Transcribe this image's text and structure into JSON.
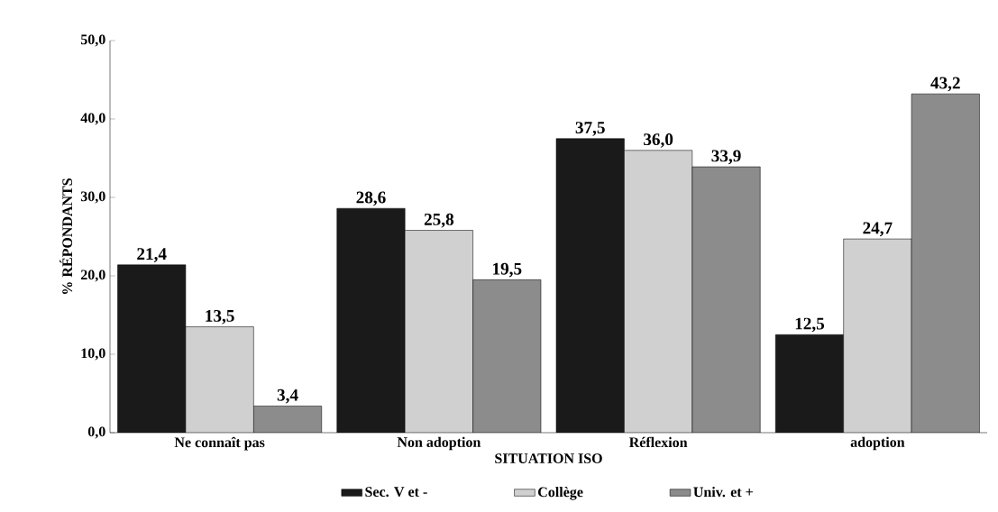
{
  "chart_data": {
    "type": "bar",
    "xlabel": "SITUATION ISO",
    "ylabel": "% RÉPONDANTS",
    "categories": [
      "Ne connaît pas",
      "Non adoption",
      "Réflexion",
      "adoption"
    ],
    "series": [
      {
        "name": "Sec. V et -",
        "color": "#1a1a1a",
        "values": [
          21.4,
          28.6,
          37.5,
          12.5
        ],
        "value_labels": [
          "21,4",
          "28,6",
          "37,5",
          "12,5"
        ]
      },
      {
        "name": "Collège",
        "color": "#d0d0d0",
        "values": [
          13.5,
          25.8,
          36.0,
          24.7
        ],
        "value_labels": [
          "13,5",
          "25,8",
          "36,0",
          "24,7"
        ]
      },
      {
        "name": "Univ. et +",
        "color": "#8c8c8c",
        "values": [
          3.4,
          19.5,
          33.9,
          43.2
        ],
        "value_labels": [
          "3,4",
          "19,5",
          "33,9",
          "43,2"
        ]
      }
    ],
    "ylim": [
      0,
      50
    ],
    "yticks": [
      {
        "value": 0,
        "label": "0,0"
      },
      {
        "value": 10,
        "label": "10,0"
      },
      {
        "value": 20,
        "label": "20,0"
      },
      {
        "value": 30,
        "label": "30,0"
      },
      {
        "value": 40,
        "label": "40,0"
      },
      {
        "value": 50,
        "label": "50,0"
      }
    ],
    "grid": false,
    "legend": "bottom"
  }
}
